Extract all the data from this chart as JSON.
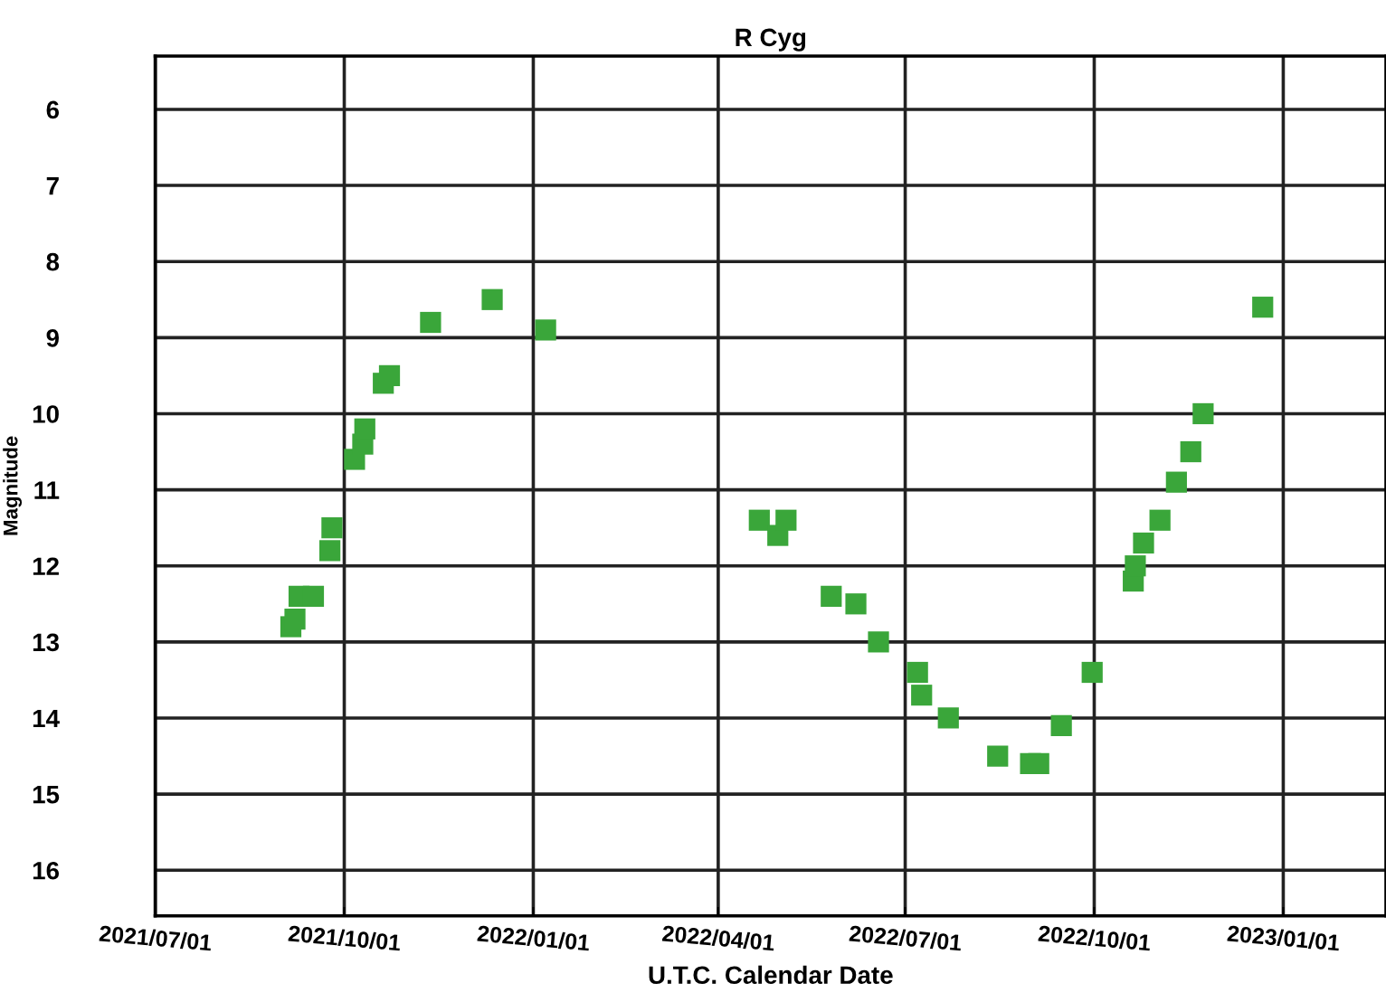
{
  "chart_data": {
    "type": "scatter",
    "title": "R Cyg",
    "xlabel": "U.T.C. Calendar Date",
    "ylabel": "Magnitude",
    "x": [
      "2021-09-05",
      "2021-09-07",
      "2021-09-09",
      "2021-09-16",
      "2021-09-24",
      "2021-09-25",
      "2021-10-06",
      "2021-10-10",
      "2021-10-11",
      "2021-10-20",
      "2021-10-23",
      "2021-11-12",
      "2021-12-12",
      "2022-01-07",
      "2022-04-21",
      "2022-04-30",
      "2022-05-04",
      "2022-05-26",
      "2022-06-07",
      "2022-06-18",
      "2022-07-07",
      "2022-07-09",
      "2022-07-22",
      "2022-08-15",
      "2022-08-31",
      "2022-09-04",
      "2022-09-15",
      "2022-09-30",
      "2022-10-20",
      "2022-10-21",
      "2022-10-25",
      "2022-11-02",
      "2022-11-10",
      "2022-11-17",
      "2022-11-23",
      "2022-12-22"
    ],
    "series": [
      {
        "color": "#3aa63a",
        "values": [
          12.8,
          12.7,
          12.4,
          12.4,
          11.8,
          11.5,
          10.6,
          10.4,
          10.2,
          9.6,
          9.5,
          8.8,
          8.5,
          8.9,
          11.4,
          11.6,
          11.4,
          12.4,
          12.5,
          13.0,
          13.4,
          13.7,
          14.0,
          14.5,
          14.6,
          14.6,
          14.1,
          13.4,
          12.2,
          12.0,
          11.7,
          11.4,
          10.9,
          10.5,
          10.0,
          8.6
        ]
      }
    ],
    "marker": "square",
    "grid": true,
    "ylim": [
      16.6,
      5.3
    ],
    "yticks": [
      6,
      7,
      8,
      9,
      10,
      11,
      12,
      13,
      14,
      15,
      16
    ],
    "xlim": [
      "2021-07-01",
      "2023-02-20"
    ],
    "xticks": [
      {
        "value": "2021-07-01",
        "label": "2021/07/01"
      },
      {
        "value": "2021-10-01",
        "label": "2021/10/01"
      },
      {
        "value": "2022-01-01",
        "label": "2022/01/01"
      },
      {
        "value": "2022-04-01",
        "label": "2022/04/01"
      },
      {
        "value": "2022-07-01",
        "label": "2022/07/01"
      },
      {
        "value": "2022-10-01",
        "label": "2022/10/01"
      },
      {
        "value": "2023-01-01",
        "label": "2023/01/01"
      }
    ]
  }
}
